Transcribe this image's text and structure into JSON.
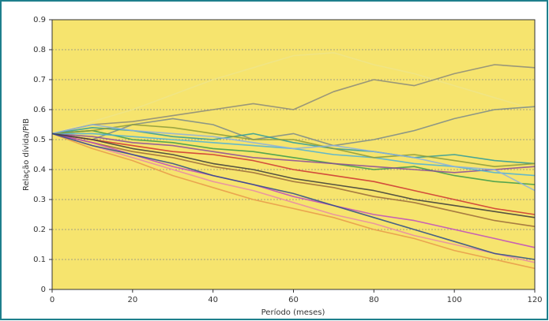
{
  "chart_data": {
    "type": "line",
    "xlabel": "Período (meses)",
    "ylabel": "Relação dívida/PIB",
    "x": [
      0,
      10,
      20,
      30,
      40,
      50,
      60,
      70,
      80,
      90,
      100,
      110,
      120
    ],
    "xlim": [
      0,
      120
    ],
    "xticks": [
      0,
      20,
      40,
      60,
      80,
      100,
      120
    ],
    "ylim": [
      0,
      0.9
    ],
    "yticks": [
      0,
      0.1,
      0.2,
      0.3,
      0.4,
      0.5,
      0.6,
      0.7,
      0.8,
      0.9
    ],
    "grid": true,
    "background": "#f6e46e",
    "series": [
      {
        "color": "#eee58a",
        "values": [
          0.52,
          0.56,
          0.6,
          0.65,
          0.7,
          0.74,
          0.78,
          0.79,
          0.75,
          0.72,
          0.68,
          0.64,
          0.6
        ]
      },
      {
        "color": "#8a8a7a",
        "values": [
          0.52,
          0.55,
          0.56,
          0.58,
          0.6,
          0.62,
          0.6,
          0.66,
          0.7,
          0.68,
          0.72,
          0.75,
          0.74
        ]
      },
      {
        "color": "#7a8a8a",
        "values": [
          0.52,
          0.5,
          0.55,
          0.57,
          0.55,
          0.5,
          0.52,
          0.48,
          0.5,
          0.53,
          0.57,
          0.6,
          0.61
        ]
      },
      {
        "color": "#cc3333",
        "values": [
          0.52,
          0.5,
          0.48,
          0.46,
          0.45,
          0.43,
          0.4,
          0.38,
          0.36,
          0.33,
          0.3,
          0.27,
          0.25
        ]
      },
      {
        "color": "#3a9a4a",
        "values": [
          0.52,
          0.53,
          0.5,
          0.49,
          0.47,
          0.46,
          0.44,
          0.42,
          0.4,
          0.41,
          0.38,
          0.36,
          0.35
        ]
      },
      {
        "color": "#e89a4a",
        "values": [
          0.52,
          0.47,
          0.43,
          0.38,
          0.34,
          0.3,
          0.27,
          0.24,
          0.2,
          0.17,
          0.13,
          0.1,
          0.07
        ]
      },
      {
        "color": "#8a4a9a",
        "values": [
          0.52,
          0.51,
          0.49,
          0.48,
          0.46,
          0.44,
          0.43,
          0.42,
          0.41,
          0.4,
          0.39,
          0.4,
          0.41
        ]
      },
      {
        "color": "#2a9a9a",
        "values": [
          0.52,
          0.54,
          0.53,
          0.51,
          0.5,
          0.52,
          0.49,
          0.47,
          0.46,
          0.44,
          0.45,
          0.43,
          0.42
        ]
      },
      {
        "color": "#9a6a3a",
        "values": [
          0.52,
          0.49,
          0.46,
          0.44,
          0.41,
          0.39,
          0.36,
          0.34,
          0.31,
          0.29,
          0.26,
          0.23,
          0.21
        ]
      },
      {
        "color": "#e88aa8",
        "values": [
          0.52,
          0.48,
          0.44,
          0.4,
          0.36,
          0.33,
          0.29,
          0.25,
          0.22,
          0.18,
          0.15,
          0.12,
          0.09
        ]
      },
      {
        "color": "#4ab0d8",
        "values": [
          0.52,
          0.52,
          0.51,
          0.5,
          0.49,
          0.48,
          0.47,
          0.45,
          0.44,
          0.42,
          0.41,
          0.39,
          0.38
        ]
      },
      {
        "color": "#8a9a3a",
        "values": [
          0.52,
          0.53,
          0.55,
          0.54,
          0.52,
          0.5,
          0.5,
          0.47,
          0.44,
          0.45,
          0.43,
          0.41,
          0.42
        ]
      },
      {
        "color": "#c04ac0",
        "values": [
          0.52,
          0.49,
          0.45,
          0.41,
          0.38,
          0.35,
          0.31,
          0.28,
          0.25,
          0.23,
          0.2,
          0.17,
          0.14
        ]
      },
      {
        "color": "#8ab0e0",
        "values": [
          0.52,
          0.55,
          0.53,
          0.52,
          0.51,
          0.49,
          0.47,
          0.48,
          0.46,
          0.44,
          0.41,
          0.4,
          0.33
        ]
      },
      {
        "color": "#3a3a3a",
        "values": [
          0.52,
          0.5,
          0.47,
          0.45,
          0.42,
          0.4,
          0.37,
          0.35,
          0.33,
          0.3,
          0.28,
          0.26,
          0.24
        ]
      },
      {
        "color": "#2a4a8a",
        "values": [
          0.52,
          0.48,
          0.45,
          0.42,
          0.38,
          0.35,
          0.32,
          0.28,
          0.24,
          0.2,
          0.16,
          0.12,
          0.1
        ]
      }
    ]
  }
}
